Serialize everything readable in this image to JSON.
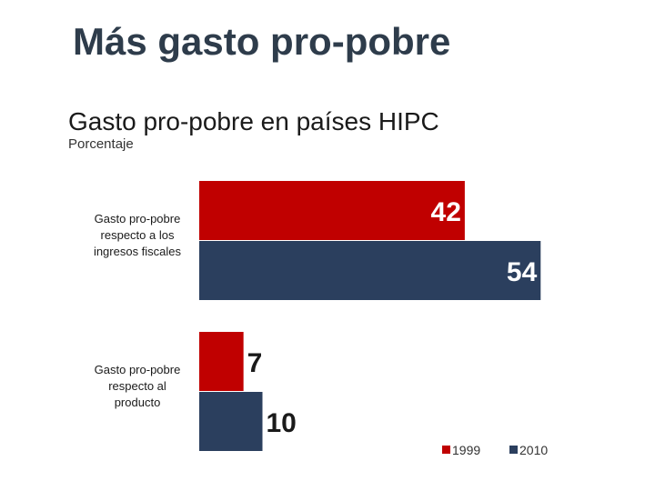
{
  "slide": {
    "title": "Más gasto pro-pobre"
  },
  "chart_data": {
    "type": "bar",
    "orientation": "horizontal",
    "title": "Gasto pro-pobre en países HIPC",
    "subtitle": "Porcentaje",
    "categories": [
      [
        "Gasto pro-pobre",
        "respecto a los",
        "ingresos fiscales"
      ],
      [
        "Gasto pro-pobre",
        "respecto al",
        "producto"
      ]
    ],
    "series": [
      {
        "name": "1999",
        "values": [
          42,
          7
        ],
        "color": "#c00000"
      },
      {
        "name": "2010",
        "values": [
          54,
          10
        ],
        "color": "#2b3f5e"
      }
    ],
    "xlim": [
      0,
      60
    ],
    "grid": false,
    "legend_position": "bottom-right"
  }
}
